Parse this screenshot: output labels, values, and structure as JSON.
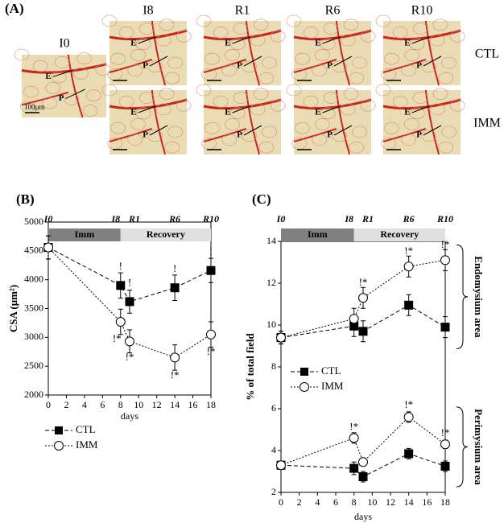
{
  "figure_label": "(A)",
  "micrographs": {
    "baseline": {
      "label": "I0",
      "annotations": [
        "E",
        "P"
      ],
      "scale_bar": "100µm"
    },
    "columns": [
      "I8",
      "R1",
      "R6",
      "R10"
    ],
    "rows": [
      "CTL",
      "IMM"
    ],
    "annotations": [
      "E",
      "P"
    ]
  },
  "chart_data": [
    {
      "type": "line",
      "panel_label": "(B)",
      "y_label": "CSA (μm²)",
      "x_label": "days",
      "x": [
        0,
        8,
        9,
        14,
        18
      ],
      "xlim": [
        0,
        18
      ],
      "xticks": [
        0,
        2,
        4,
        6,
        8,
        10,
        12,
        14,
        16,
        18
      ],
      "ylim": [
        2000,
        5000
      ],
      "yticks": [
        2000,
        2500,
        3000,
        3500,
        4000,
        4500,
        5000
      ],
      "phases": [
        {
          "label": "Imm",
          "range": [
            0,
            8
          ],
          "color": "#808080"
        },
        {
          "label": "Recovery",
          "range": [
            8,
            18
          ],
          "color": "#e0e0e0"
        }
      ],
      "time_labels": [
        {
          "label": "I0",
          "x": 0
        },
        {
          "label": "I8",
          "x": 8
        },
        {
          "label": "R1",
          "x": 9
        },
        {
          "label": "R6",
          "x": 14
        },
        {
          "label": "R10",
          "x": 18
        }
      ],
      "series": [
        {
          "name": "CTL",
          "color": "#000000",
          "marker": "square",
          "values": [
            4560,
            3900,
            3620,
            3860,
            4160
          ],
          "errors": [
            200,
            220,
            200,
            220,
            210
          ]
        },
        {
          "name": "IMM",
          "color": "#000000",
          "marker": "circle",
          "values": [
            4560,
            3270,
            2930,
            2650,
            3050
          ],
          "errors": [
            200,
            220,
            200,
            220,
            220
          ]
        }
      ],
      "annotations": [
        {
          "text": "!",
          "x": 8,
          "y": 4220
        },
        {
          "text": "!",
          "x": 9,
          "y": 3930
        },
        {
          "text": "!",
          "x": 14,
          "y": 4180
        },
        {
          "text": "!",
          "x": 18,
          "y": 4470
        },
        {
          "text": "!*",
          "x": 7.6,
          "y": 2960
        },
        {
          "text": "!*",
          "x": 9,
          "y": 2640
        },
        {
          "text": "!*",
          "x": 14,
          "y": 2330
        },
        {
          "text": "!*",
          "x": 18,
          "y": 2740
        }
      ]
    },
    {
      "type": "line",
      "panel_label": "(C)",
      "y_label": "% of total field",
      "x_label": "days",
      "x": [
        0,
        8,
        9,
        14,
        18
      ],
      "xlim": [
        0,
        18
      ],
      "xticks": [
        0,
        2,
        4,
        6,
        8,
        10,
        12,
        14,
        16,
        18
      ],
      "ylim": [
        2,
        14
      ],
      "yticks": [
        2,
        4,
        6,
        8,
        10,
        12,
        14
      ],
      "phases": [
        {
          "label": "Imm",
          "range": [
            0,
            8
          ],
          "color": "#808080"
        },
        {
          "label": "Recovery",
          "range": [
            8,
            18
          ],
          "color": "#e0e0e0"
        }
      ],
      "time_labels": [
        {
          "label": "I0",
          "x": 0
        },
        {
          "label": "I8",
          "x": 8
        },
        {
          "label": "R1",
          "x": 9
        },
        {
          "label": "R6",
          "x": 14
        },
        {
          "label": "R10",
          "x": 18
        }
      ],
      "groups": [
        {
          "label": "Endomysium area",
          "series": [
            {
              "name": "CTL",
              "color": "#000000",
              "marker": "square",
              "values": [
                9.4,
                9.95,
                9.7,
                10.95,
                9.9
              ],
              "errors": [
                0.3,
                0.5,
                0.5,
                0.5,
                0.5
              ]
            },
            {
              "name": "IMM",
              "color": "#000000",
              "marker": "circle",
              "values": [
                9.4,
                10.3,
                11.3,
                12.8,
                13.1
              ],
              "errors": [
                0.3,
                0.5,
                0.5,
                0.5,
                0.5
              ]
            }
          ]
        },
        {
          "label": "Perimysium area",
          "series": [
            {
              "color": "#000000",
              "marker": "square",
              "values": [
                3.3,
                3.15,
                2.75,
                3.85,
                3.25
              ],
              "errors": [
                0.2,
                0.3,
                0.25,
                0.25,
                0.25
              ]
            },
            {
              "color": "#000000",
              "marker": "circle",
              "values": [
                3.3,
                4.6,
                3.45,
                5.6,
                4.3
              ],
              "errors": [
                0.2,
                0.25,
                0.2,
                0.25,
                0.2
              ]
            }
          ]
        }
      ],
      "annotations": [
        {
          "text": "!*",
          "x": 9,
          "y": 12.0
        },
        {
          "text": "!*",
          "x": 14,
          "y": 13.5
        },
        {
          "text": "!*",
          "x": 18,
          "y": 13.8
        },
        {
          "text": "!*",
          "x": 8,
          "y": 5.1
        },
        {
          "text": "!*",
          "x": 14,
          "y": 6.15
        },
        {
          "text": "!*",
          "x": 18,
          "y": 4.8
        }
      ]
    }
  ]
}
